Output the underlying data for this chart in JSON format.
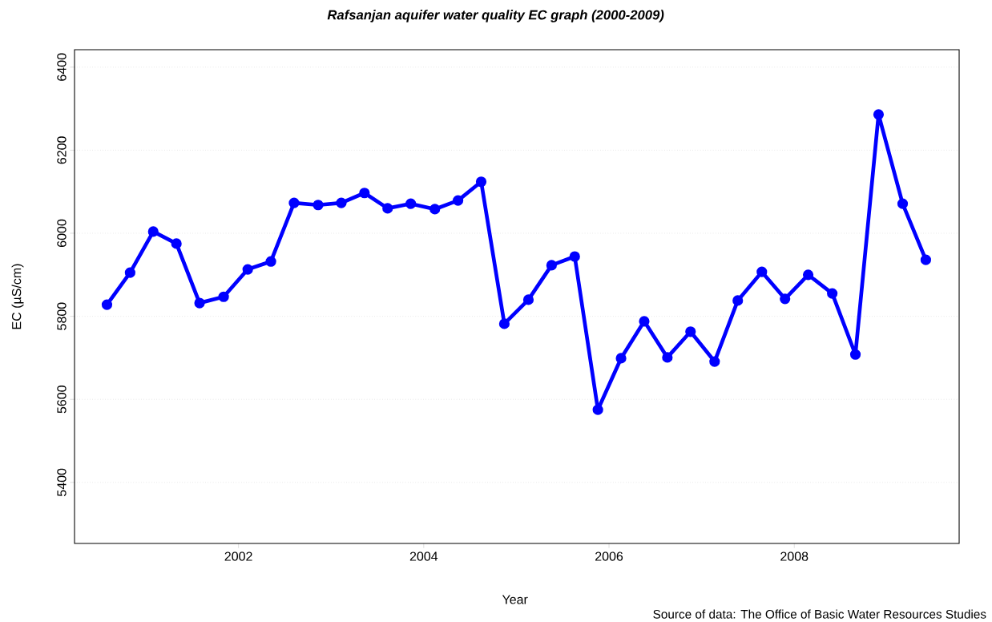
{
  "chart_data": {
    "type": "line",
    "title": "Rafsanjan aquifer water quality EC graph (2000-2009)",
    "xlabel": "Year",
    "ylabel": "EC (µS/cm)",
    "annotations": [
      "Source of data: The Office of Basic Water Resources Studies"
    ],
    "x": [
      2000.58,
      2000.83,
      2001.08,
      2001.33,
      2001.58,
      2001.84,
      2002.1,
      2002.35,
      2002.6,
      2002.86,
      2003.11,
      2003.36,
      2003.61,
      2003.86,
      2004.12,
      2004.37,
      2004.62,
      2004.87,
      2005.13,
      2005.38,
      2005.63,
      2005.88,
      2006.13,
      2006.38,
      2006.63,
      2006.88,
      2007.14,
      2007.39,
      2007.65,
      2007.9,
      2008.15,
      2008.41,
      2008.66,
      2008.91,
      2009.17,
      2009.42
    ],
    "series": [
      {
        "color": "#0000ff",
        "values": [
          5828,
          5905,
          6004,
          5975,
          5832,
          5847,
          5913,
          5932,
          6073,
          6068,
          6073,
          6097,
          6060,
          6071,
          6058,
          6079,
          6124,
          5782,
          5840,
          5923,
          5944,
          5575,
          5699,
          5788,
          5701,
          5763,
          5691,
          5838,
          5907,
          5842,
          5900,
          5855,
          5708,
          6286,
          6071,
          5936
        ]
      }
    ],
    "xlim": [
      2000.23,
      2009.78
    ],
    "ylim": [
      5253,
      6442
    ],
    "xticks": [
      2002,
      2004,
      2006,
      2008
    ],
    "yticks": [
      5400,
      5600,
      5800,
      6000,
      6200,
      6400
    ],
    "grid": "y",
    "marker": "circle",
    "line_style": "solid"
  }
}
